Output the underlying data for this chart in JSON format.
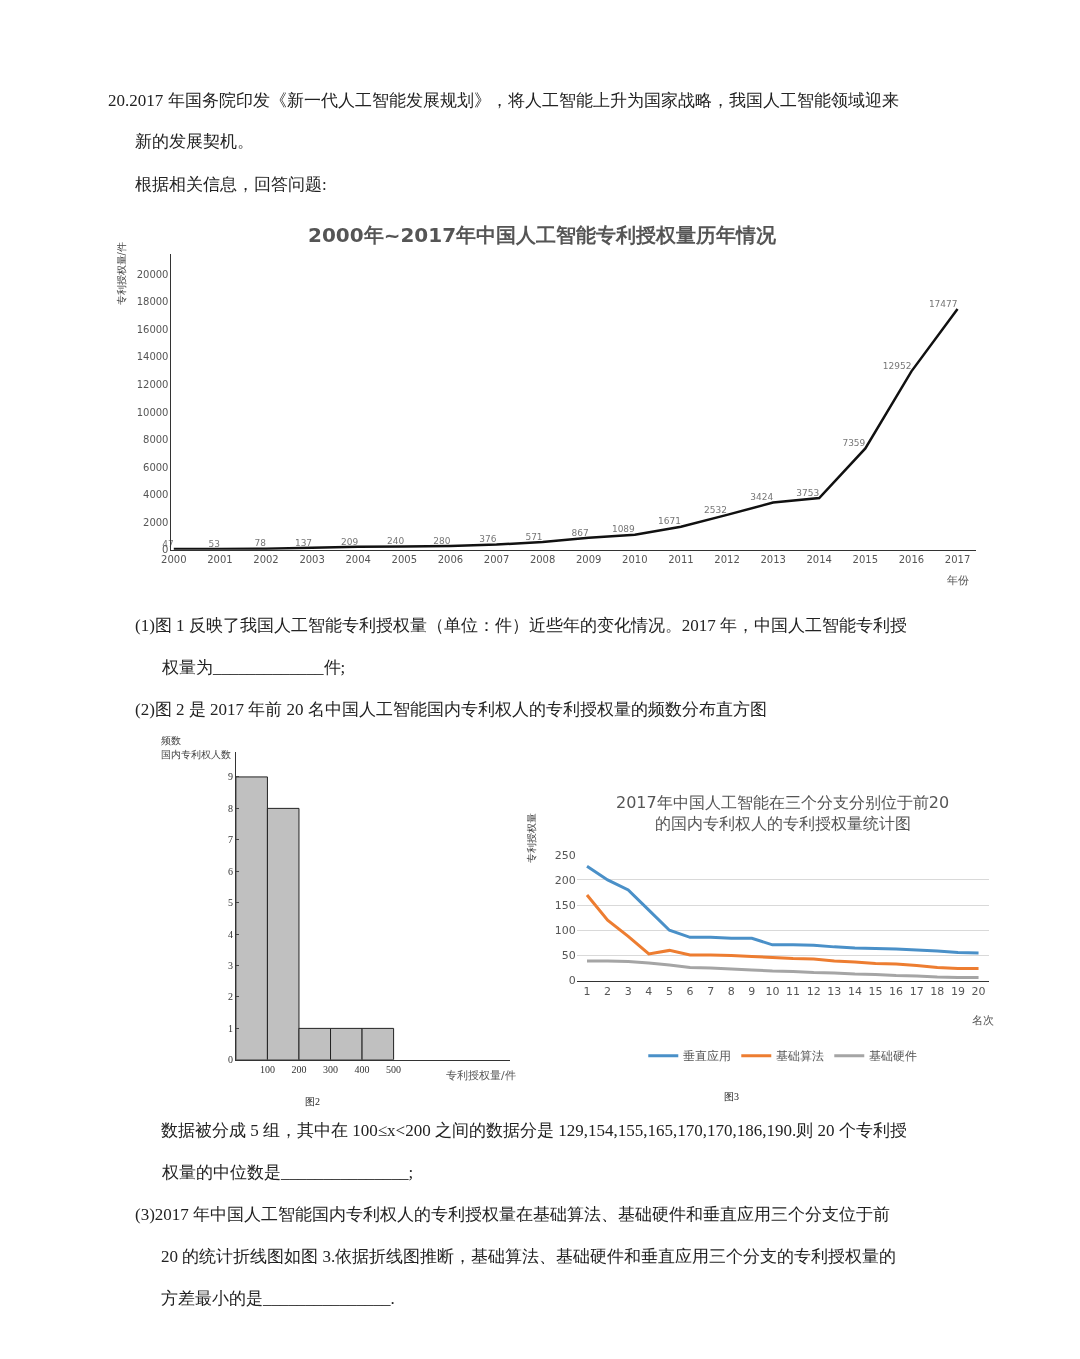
{
  "chart_data": [
    {
      "type": "line",
      "title": "2000年~2017年中国人工智能专利授权量历年情况",
      "xlabel": "年份",
      "ylabel": "专利授权量/件",
      "categories": [
        "2000",
        "2001",
        "2002",
        "2003",
        "2004",
        "2005",
        "2006",
        "2007",
        "2008",
        "2009",
        "2010",
        "2011",
        "2012",
        "2013",
        "2014",
        "2015",
        "2016",
        "2017"
      ],
      "series": [
        {
          "color": "#111111",
          "values": [
            47,
            53,
            78,
            137,
            209,
            240,
            280,
            376,
            571,
            867,
            1089,
            1671,
            2532,
            3424,
            3753,
            7359,
            12952,
            17477
          ]
        }
      ],
      "ylim": [
        0,
        21500
      ],
      "yticks": [
        0,
        2000,
        4000,
        6000,
        8000,
        10000,
        12000,
        14000,
        16000,
        18000,
        20000
      ],
      "grid": false,
      "legend": false,
      "marker": "none",
      "line_style": "solid",
      "data_labels": true,
      "annotations": [
        "20.2017 年国务院印发《新一代人工智能发展规划》，将人工智能上升为国家战略，我国人工智能领域迎来",
        "新的发展契机。",
        "根据相关信息，回答问题:",
        "(1)图 1 反映了我国人工智能专利授权量（单位：件）近些年的变化情况。2017 年，中国人工智能专利授",
        "权量为_____________件;",
        "(2)图 2 是 2017 年前 20 名中国人工智能国内专利权人的专利授权量的频数分布直方图"
      ]
    },
    {
      "type": "histogram",
      "xlabel": "专利授权量/件",
      "ylabel": "国内专利权人数",
      "bins": [
        0,
        100,
        200,
        300,
        400,
        500
      ],
      "values": [
        9,
        8,
        1,
        1,
        1
      ],
      "color": "#c0c0c0",
      "xlim": [
        0,
        870
      ],
      "xticks": [
        100,
        200,
        300,
        400,
        500
      ],
      "ylim": [
        0,
        9.8
      ],
      "yticks": [
        0,
        1,
        2,
        3,
        4,
        5,
        6,
        7,
        8,
        9
      ],
      "grid": false,
      "legend": false,
      "annotations": [
        "频数",
        "图2",
        "数据被分成 5 组，其中在 100≤x<200 之间的数据分是 129,154,155,165,170,170,186,190.则 20 个专利授",
        "权量的中位数是_______________;"
      ]
    },
    {
      "type": "line",
      "title": "2017年中国人工智能在三个分支分别位于前20\n的国内专利权人的专利授权量统计图",
      "xlabel": "名次",
      "ylabel": "专利授权量",
      "categories": [
        "1",
        "2",
        "3",
        "4",
        "5",
        "6",
        "7",
        "8",
        "9",
        "10",
        "11",
        "12",
        "13",
        "14",
        "15",
        "16",
        "17",
        "18",
        "19",
        "20"
      ],
      "series": [
        {
          "name": "垂直应用",
          "color": "#4a90c8",
          "values": [
            227,
            200,
            180,
            140,
            100,
            86,
            86,
            84,
            84,
            71,
            71,
            70,
            67,
            65,
            64,
            63,
            61,
            59,
            56,
            55
          ]
        },
        {
          "name": "基础算法",
          "color": "#ed7d31",
          "values": [
            170,
            120,
            88,
            53,
            60,
            51,
            51,
            50,
            48,
            46,
            44,
            43,
            39,
            37,
            34,
            33,
            30,
            26,
            24,
            24
          ]
        },
        {
          "name": "基础硬件",
          "color": "#a5a5a5",
          "values": [
            39,
            39,
            38,
            35,
            31,
            26,
            25,
            23,
            21,
            19,
            18,
            16,
            15,
            13,
            12,
            10,
            9,
            7,
            6,
            6
          ]
        }
      ],
      "ylim": [
        0,
        250
      ],
      "yticks": [
        0,
        50,
        100,
        150,
        200,
        250
      ],
      "grid": "y",
      "legend": "bottom",
      "marker": "none",
      "line_style": "solid",
      "annotations": [
        "图3",
        "(3)2017 年中国人工智能国内专利权人的专利授权量在基础算法、基础硬件和垂直应用三个分支位于前",
        "20 的统计折线图如图 3.依据折线图推断，基础算法、基础硬件和垂直应用三个分支的专利授权量的",
        "方差最小的是_______________."
      ]
    }
  ]
}
